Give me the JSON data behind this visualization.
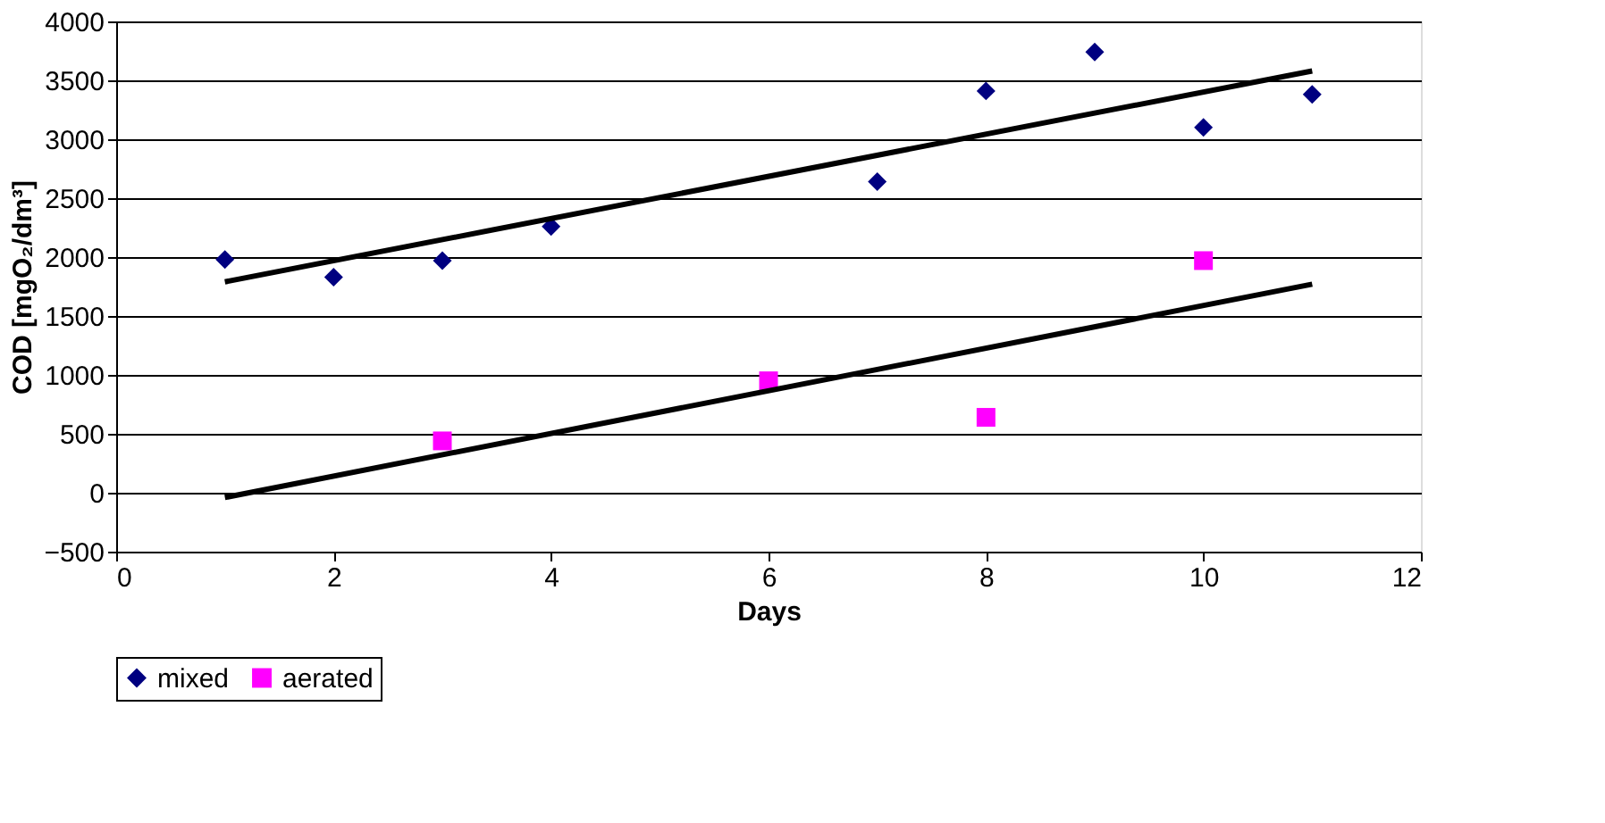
{
  "chart_data": {
    "type": "scatter",
    "xlabel": "Days",
    "ylabel": "COD [mgO₂/dm³]",
    "xlim": [
      0,
      12
    ],
    "xticks": [
      0,
      2,
      4,
      6,
      8,
      10,
      12
    ],
    "ylim": [
      -500,
      4000
    ],
    "yticks": [
      -500,
      0,
      500,
      1000,
      1500,
      2000,
      2500,
      3000,
      3500,
      4000
    ],
    "grid": "y",
    "legend": "bottom",
    "series": [
      {
        "name": "mixed",
        "color": "#000080",
        "marker": "diamond",
        "x": [
          1,
          2,
          3,
          4,
          7,
          8,
          9,
          10,
          11
        ],
        "values": [
          1980,
          1830,
          1970,
          2260,
          2640,
          3410,
          3740,
          3100,
          3380
        ]
      },
      {
        "name": "aerated",
        "color": "#ff00ff",
        "marker": "square",
        "x": [
          3,
          6,
          8,
          10
        ],
        "values": [
          440,
          950,
          640,
          1970
        ]
      },
      {
        "type": "line",
        "color": "#000000",
        "x": [
          1,
          11
        ],
        "values": [
          1790,
          3580
        ]
      },
      {
        "type": "line",
        "color": "#000000",
        "x": [
          1,
          11
        ],
        "values": [
          -40,
          1770
        ]
      }
    ]
  }
}
